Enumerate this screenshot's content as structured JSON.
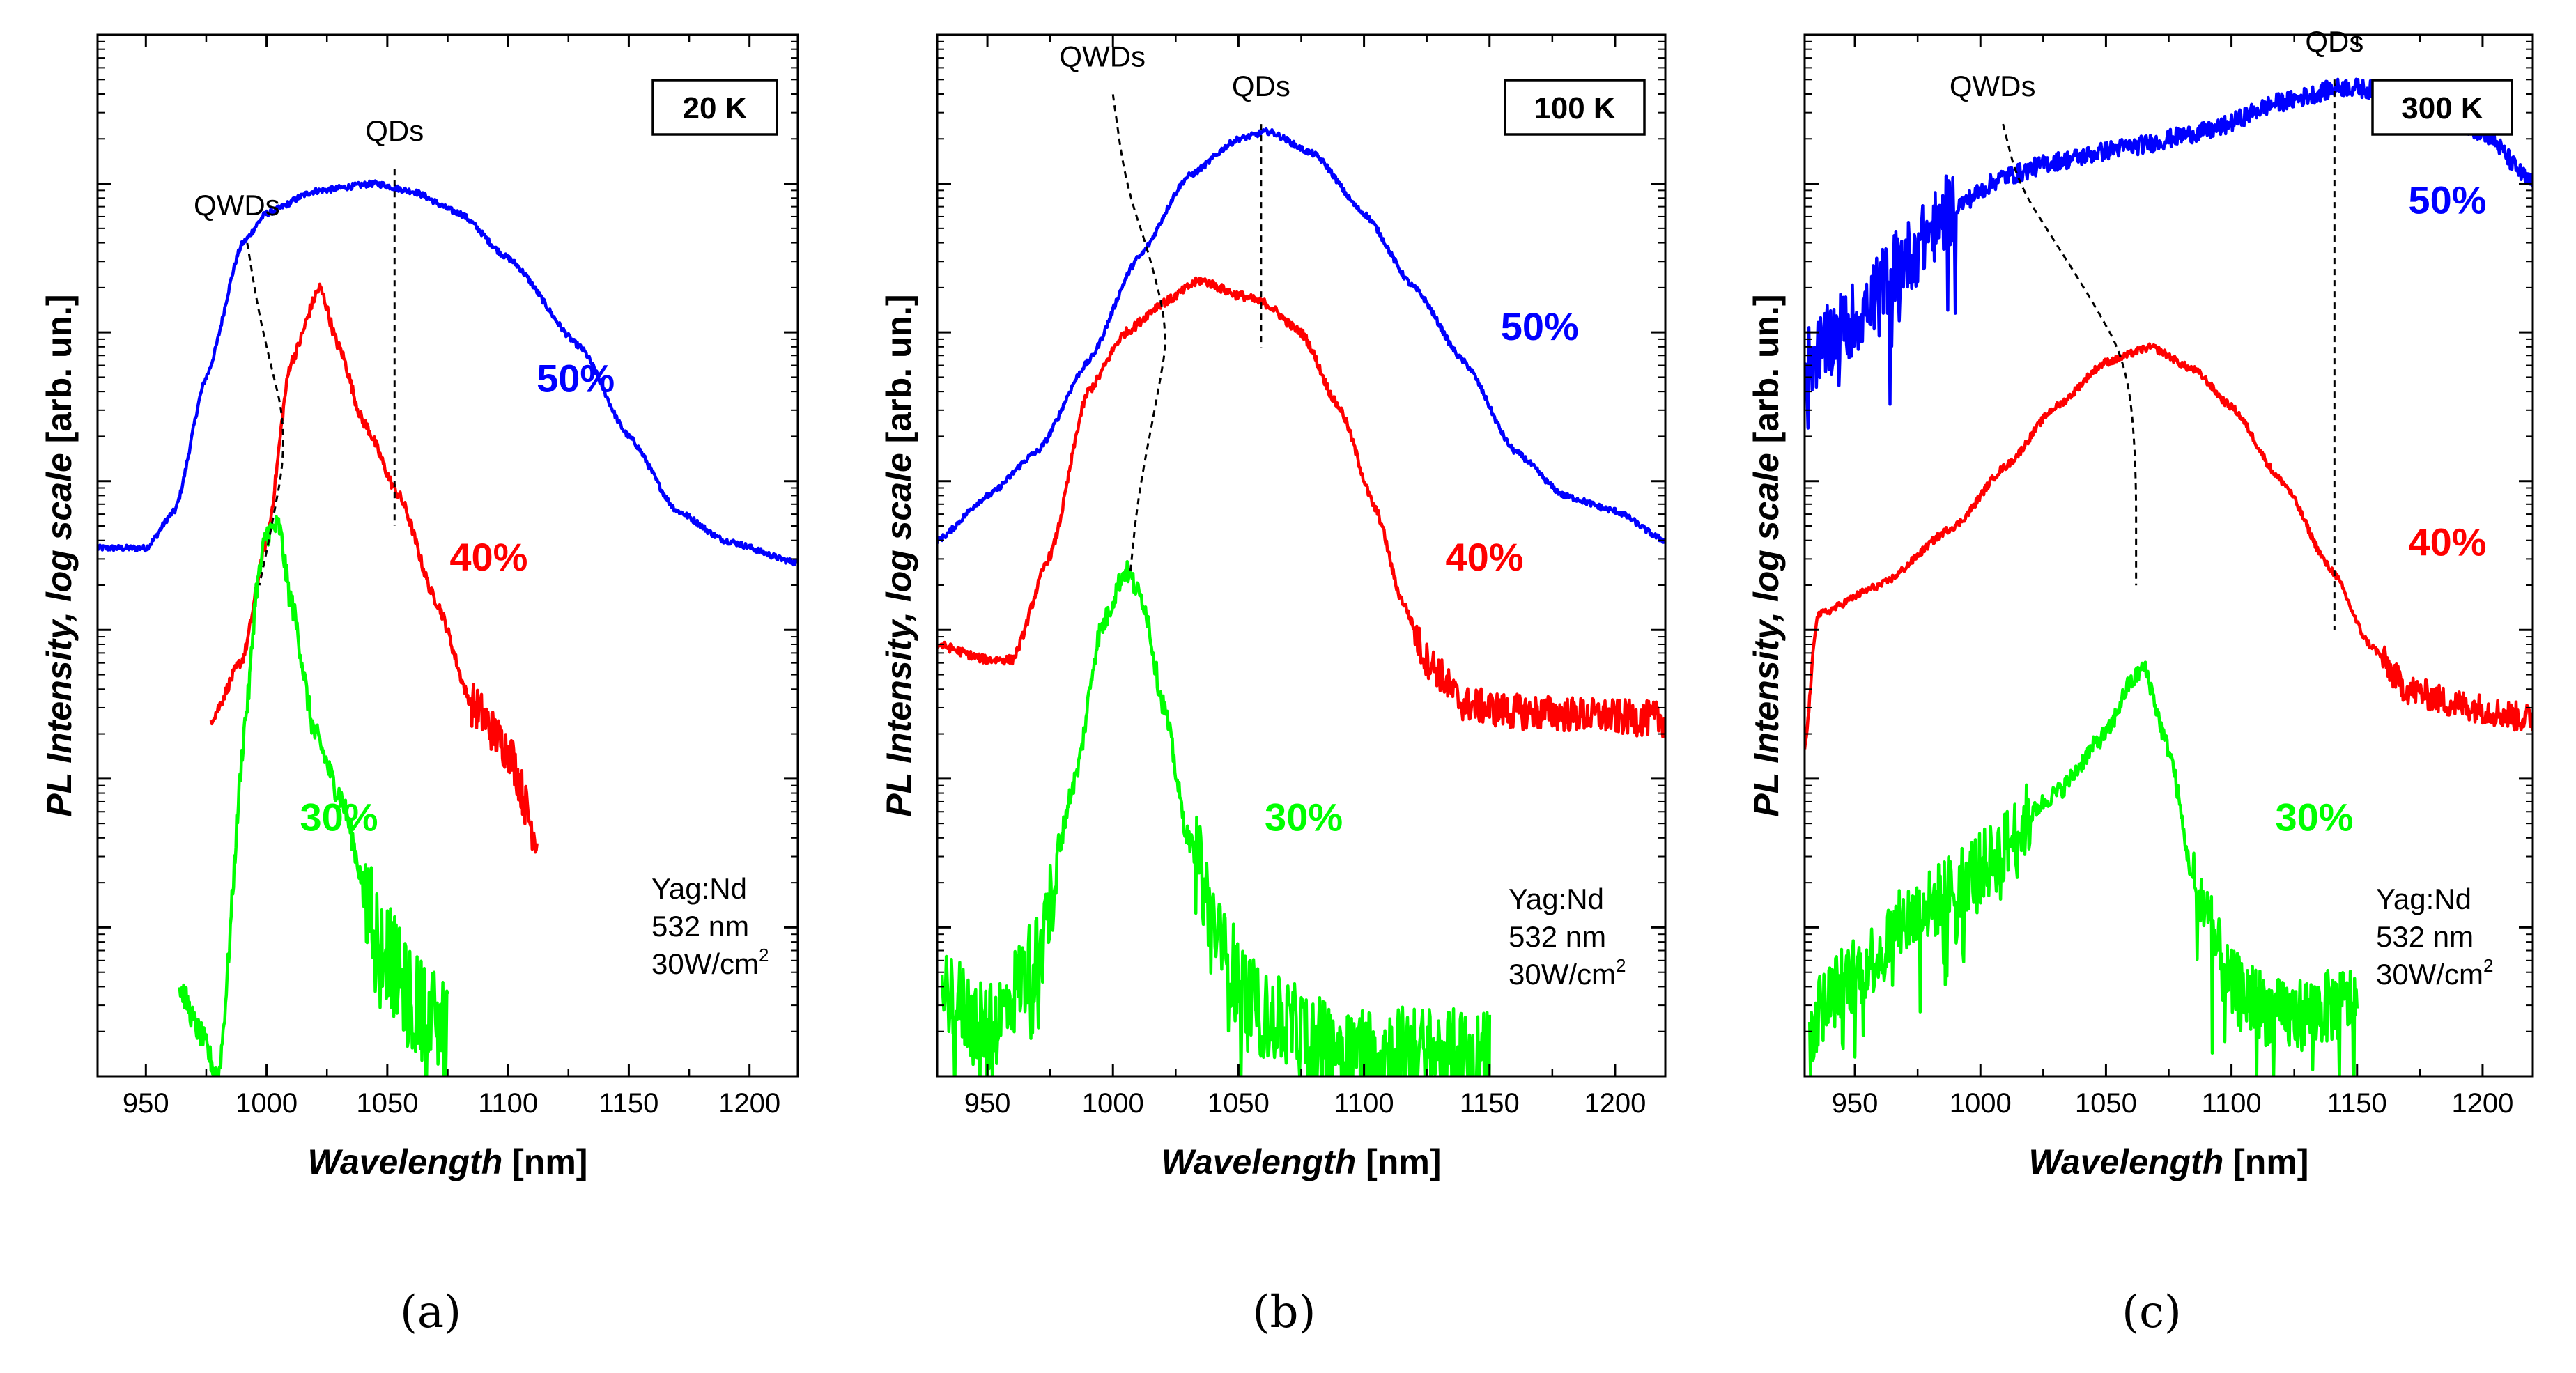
{
  "figure": {
    "background": "#ffffff"
  },
  "chart_data": [
    {
      "type": "line",
      "panel_caption": "(a)",
      "temperature": "20 K",
      "xlabel_italic": "Wavelength",
      "xlabel_unit": " [nm]",
      "ylabel_italic": "PL Intensity, log scale",
      "ylabel_unit": " [arb. un.]",
      "xlim": [
        930,
        1220
      ],
      "xticks": [
        950,
        1000,
        1050,
        1100,
        1150,
        1200
      ],
      "ylim": [
        0,
        7
      ],
      "y_scale": "log (decades, unlabeled)",
      "y_decade_ticks": [
        1,
        2,
        3,
        4,
        5,
        6
      ],
      "excitation": [
        "Yag:Nd",
        "532 nm",
        "30W/cm",
        "2"
      ],
      "markers": [
        {
          "label": "QWDs",
          "type": "curve",
          "points": [
            [
              992,
              5.6
            ],
            [
              996,
              5.2
            ],
            [
              1000,
              4.9
            ],
            [
              1009,
              4.3
            ],
            [
              1001,
              3.6
            ],
            [
              997,
              3.3
            ]
          ]
        },
        {
          "label": "QDs",
          "type": "vertical",
          "x": 1053,
          "y_range": [
            3.7,
            6.1
          ]
        }
      ],
      "series": [
        {
          "name": "50%",
          "color": "#0000ff",
          "label_at": [
            1128,
            4.6
          ],
          "noise": 0.08,
          "points": [
            [
              930,
              3.55
            ],
            [
              950,
              3.55
            ],
            [
              962,
              3.8
            ],
            [
              975,
              4.7
            ],
            [
              990,
              5.6
            ],
            [
              1000,
              5.8
            ],
            [
              1020,
              5.95
            ],
            [
              1045,
              6.0
            ],
            [
              1060,
              5.95
            ],
            [
              1080,
              5.8
            ],
            [
              1100,
              5.5
            ],
            [
              1130,
              4.9
            ],
            [
              1150,
              4.3
            ],
            [
              1170,
              3.8
            ],
            [
              1190,
              3.6
            ],
            [
              1220,
              3.45
            ]
          ]
        },
        {
          "name": "40%",
          "color": "#ff0000",
          "label_at": [
            1092,
            3.4
          ],
          "noise": 0.15,
          "noise_from": 1085,
          "points": [
            [
              977,
              2.4
            ],
            [
              990,
              2.8
            ],
            [
              1000,
              3.6
            ],
            [
              1010,
              4.8
            ],
            [
              1022,
              5.3
            ],
            [
              1030,
              4.9
            ],
            [
              1040,
              4.4
            ],
            [
              1055,
              3.9
            ],
            [
              1070,
              3.2
            ],
            [
              1085,
              2.5
            ],
            [
              1100,
              2.2
            ],
            [
              1112,
              1.6
            ]
          ]
        },
        {
          "name": "30%",
          "color": "#00ff00",
          "label_at": [
            1030,
            1.65
          ],
          "noise": 0.35,
          "noise_from": 1040,
          "points": [
            [
              964,
              0.6
            ],
            [
              972,
              0.3
            ],
            [
              980,
              0.0
            ],
            [
              992,
              2.5
            ],
            [
              996,
              3.3
            ],
            [
              1000,
              3.65
            ],
            [
              1005,
              3.7
            ],
            [
              1010,
              3.2
            ],
            [
              1020,
              2.3
            ],
            [
              1030,
              1.9
            ],
            [
              1045,
              1.0
            ],
            [
              1060,
              0.5
            ],
            [
              1075,
              0.3
            ]
          ]
        }
      ]
    },
    {
      "type": "line",
      "panel_caption": "(b)",
      "temperature": "100 K",
      "xlabel_italic": "Wavelength",
      "xlabel_unit": " [nm]",
      "ylabel_italic": "PL Intensity, log scale",
      "ylabel_unit": " [arb. un.]",
      "xlim": [
        930,
        1220
      ],
      "xticks": [
        950,
        1000,
        1050,
        1100,
        1150,
        1200
      ],
      "ylim": [
        0,
        7
      ],
      "y_scale": "log (decades, unlabeled)",
      "y_decade_ticks": [
        1,
        2,
        3,
        4,
        5,
        6
      ],
      "excitation": [
        "Yag:Nd",
        "532 nm",
        "30W/cm",
        "2"
      ],
      "markers": [
        {
          "label": "QWDs",
          "type": "curve",
          "points": [
            [
              1000,
              6.6
            ],
            [
              1005,
              6.0
            ],
            [
              1015,
              5.5
            ],
            [
              1022,
              5.0
            ],
            [
              1018,
              4.6
            ],
            [
              1010,
              3.9
            ],
            [
              1007,
              3.4
            ]
          ]
        },
        {
          "label": "QDs",
          "type": "vertical",
          "x": 1059,
          "y_range": [
            4.9,
            6.4
          ]
        }
      ],
      "series": [
        {
          "name": "50%",
          "color": "#0000ff",
          "label_at": [
            1170,
            4.95
          ],
          "noise": 0.08,
          "points": [
            [
              930,
              3.6
            ],
            [
              950,
              3.9
            ],
            [
              970,
              4.2
            ],
            [
              990,
              4.8
            ],
            [
              1010,
              5.5
            ],
            [
              1030,
              6.05
            ],
            [
              1050,
              6.3
            ],
            [
              1062,
              6.35
            ],
            [
              1080,
              6.2
            ],
            [
              1100,
              5.8
            ],
            [
              1120,
              5.3
            ],
            [
              1140,
              4.8
            ],
            [
              1160,
              4.2
            ],
            [
              1180,
              3.9
            ],
            [
              1200,
              3.8
            ],
            [
              1220,
              3.6
            ]
          ]
        },
        {
          "name": "40%",
          "color": "#ff0000",
          "label_at": [
            1148,
            3.4
          ],
          "noise": 0.12,
          "noise_from": 1120,
          "points": [
            [
              930,
              2.9
            ],
            [
              950,
              2.8
            ],
            [
              960,
              2.8
            ],
            [
              975,
              3.5
            ],
            [
              990,
              4.6
            ],
            [
              1005,
              5.0
            ],
            [
              1020,
              5.2
            ],
            [
              1035,
              5.35
            ],
            [
              1050,
              5.25
            ],
            [
              1060,
              5.2
            ],
            [
              1075,
              5.0
            ],
            [
              1090,
              4.5
            ],
            [
              1105,
              3.8
            ],
            [
              1115,
              3.2
            ],
            [
              1125,
              2.8
            ],
            [
              1140,
              2.5
            ],
            [
              1160,
              2.45
            ],
            [
              1220,
              2.4
            ]
          ]
        },
        {
          "name": "30%",
          "color": "#00ff00",
          "label_at": [
            1076,
            1.65
          ],
          "noise": 0.3,
          "points": [
            [
              932,
              0.6
            ],
            [
              950,
              0.3
            ],
            [
              970,
              0.8
            ],
            [
              985,
              2.0
            ],
            [
              995,
              3.0
            ],
            [
              1005,
              3.4
            ],
            [
              1012,
              3.2
            ],
            [
              1020,
              2.5
            ],
            [
              1030,
              1.6
            ],
            [
              1045,
              0.8
            ],
            [
              1060,
              0.4
            ],
            [
              1090,
              0.2
            ],
            [
              1150,
              0.15
            ]
          ]
        }
      ]
    },
    {
      "type": "line",
      "panel_caption": "(c)",
      "temperature": "300 K",
      "xlabel_italic": "Wavelength",
      "xlabel_unit": " [nm]",
      "ylabel_italic": "PL Intensity, log scale",
      "ylabel_unit": " [arb. un.]",
      "xlim": [
        930,
        1220
      ],
      "xticks": [
        950,
        1000,
        1050,
        1100,
        1150,
        1200
      ],
      "ylim": [
        0,
        7
      ],
      "y_scale": "log (decades, unlabeled)",
      "y_decade_ticks": [
        1,
        2,
        3,
        4,
        5,
        6
      ],
      "excitation": [
        "Yag:Nd",
        "532 nm",
        "30W/cm",
        "2"
      ],
      "markers": [
        {
          "label": "QWDs",
          "type": "curve",
          "points": [
            [
              1009,
              6.4
            ],
            [
              1015,
              6.0
            ],
            [
              1030,
              5.6
            ],
            [
              1045,
              5.2
            ],
            [
              1058,
              4.8
            ],
            [
              1062,
              4.2
            ],
            [
              1062,
              3.3
            ]
          ]
        },
        {
          "label": "QDs",
          "type": "vertical",
          "x": 1141,
          "y_range": [
            3.0,
            6.7
          ]
        }
      ],
      "series": [
        {
          "name": "50%",
          "color": "#0000ff",
          "label_at": [
            1186,
            5.8
          ],
          "noise": 0.25,
          "noise_to": 990,
          "points": [
            [
              930,
              4.8
            ],
            [
              950,
              5.1
            ],
            [
              970,
              5.5
            ],
            [
              990,
              5.85
            ],
            [
              1010,
              6.05
            ],
            [
              1030,
              6.15
            ],
            [
              1060,
              6.25
            ],
            [
              1090,
              6.35
            ],
            [
              1120,
              6.55
            ],
            [
              1145,
              6.65
            ],
            [
              1170,
              6.6
            ],
            [
              1200,
              6.35
            ],
            [
              1220,
              6.0
            ]
          ]
        },
        {
          "name": "40%",
          "color": "#ff0000",
          "label_at": [
            1186,
            3.5
          ],
          "noise": 0.1,
          "noise_from": 1160,
          "points": [
            [
              930,
              2.2
            ],
            [
              935,
              3.1
            ],
            [
              960,
              3.3
            ],
            [
              990,
              3.7
            ],
            [
              1010,
              4.1
            ],
            [
              1030,
              4.5
            ],
            [
              1050,
              4.8
            ],
            [
              1068,
              4.9
            ],
            [
              1085,
              4.75
            ],
            [
              1100,
              4.5
            ],
            [
              1120,
              4.0
            ],
            [
              1140,
              3.4
            ],
            [
              1155,
              2.9
            ],
            [
              1170,
              2.6
            ],
            [
              1190,
              2.5
            ],
            [
              1220,
              2.4
            ]
          ]
        },
        {
          "name": "30%",
          "color": "#00ff00",
          "label_at": [
            1133,
            1.65
          ],
          "noise": 0.25,
          "noise_to": 1020,
          "noise_from": 1085,
          "points": [
            [
              932,
              0.4
            ],
            [
              950,
              0.7
            ],
            [
              975,
              1.1
            ],
            [
              1000,
              1.4
            ],
            [
              1030,
              1.9
            ],
            [
              1050,
              2.3
            ],
            [
              1060,
              2.65
            ],
            [
              1065,
              2.75
            ],
            [
              1075,
              2.2
            ],
            [
              1085,
              1.3
            ],
            [
              1100,
              0.6
            ],
            [
              1120,
              0.4
            ],
            [
              1150,
              0.5
            ]
          ]
        }
      ]
    }
  ]
}
